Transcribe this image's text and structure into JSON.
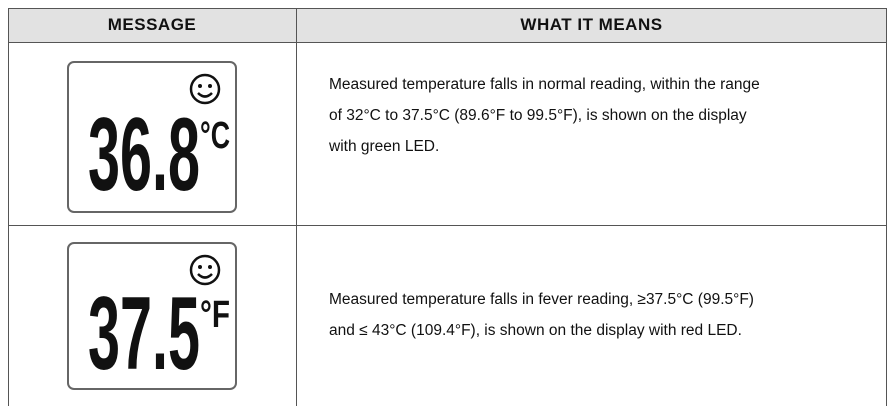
{
  "header": {
    "message": "MESSAGE",
    "meaning": "WHAT IT MEANS"
  },
  "rows": [
    {
      "display": {
        "reading": "36.8",
        "unit": "°C"
      },
      "description": [
        "Measured temperature falls in normal reading, within the range",
        "of 32°C to 37.5°C (89.6°F to 99.5°F), is shown on the display",
        "with green LED."
      ]
    },
    {
      "display": {
        "reading": "37.5",
        "unit": "°F"
      },
      "description": [
        "Measured temperature falls in fever reading, ≥37.5°C (99.5°F)",
        "and ≤ 43°C (109.4°F), is shown on the display with red LED."
      ]
    }
  ]
}
